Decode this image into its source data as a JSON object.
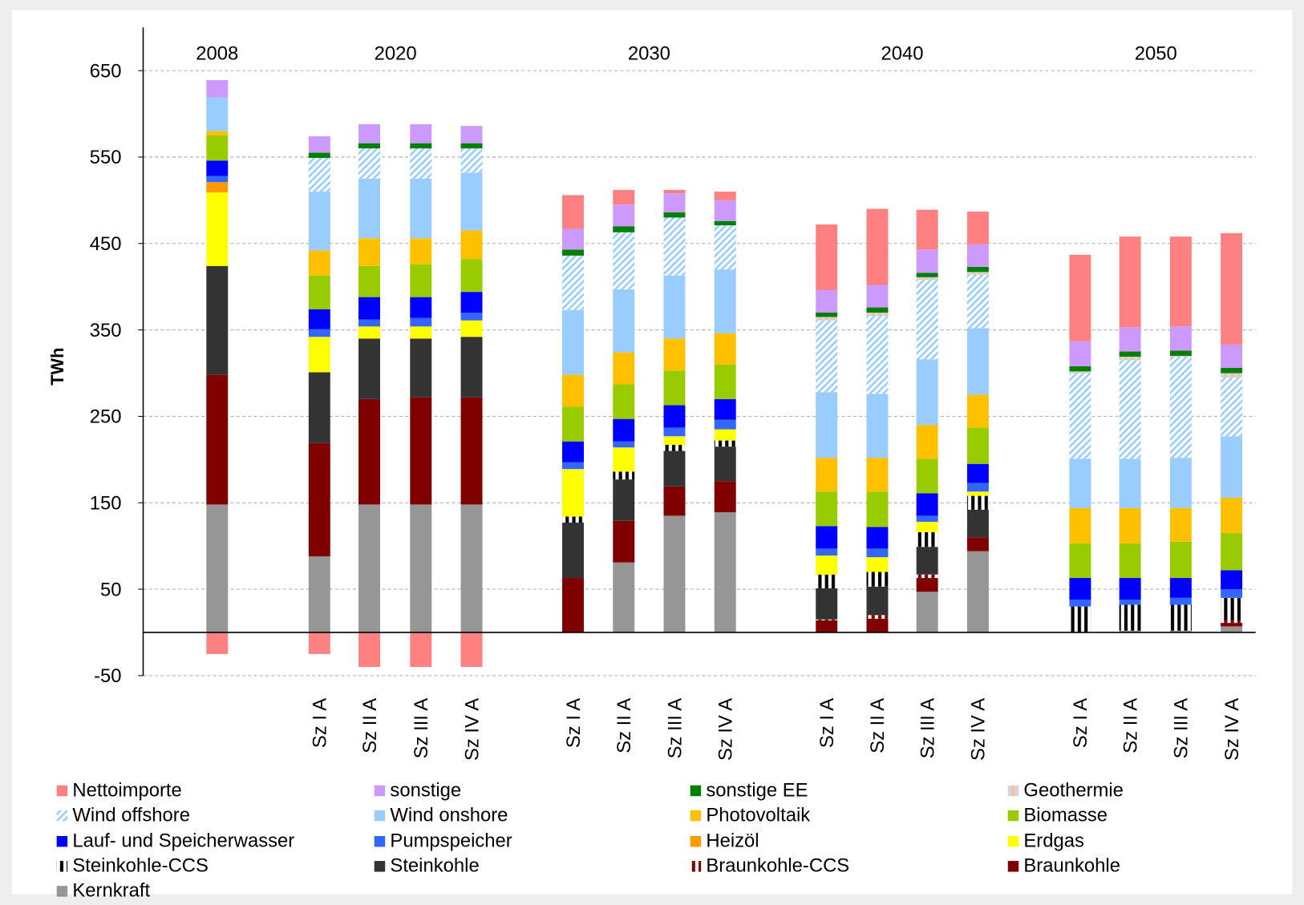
{
  "chart_data": {
    "type": "stacked-bar",
    "y_label": "TWh",
    "ylim": [
      -50,
      700
    ],
    "yticks": [
      -50,
      50,
      150,
      250,
      350,
      450,
      550,
      650
    ],
    "grid": true,
    "categories": [
      null,
      "Sz I A",
      "Sz II A",
      "Sz III A",
      "Sz IV A",
      "Sz I A",
      "Sz II A",
      "Sz III A",
      "Sz IV A",
      "Sz I A",
      "Sz II A",
      "Sz III A",
      "Sz IV A",
      "Sz I A",
      "Sz II A",
      "Sz III A",
      "Sz IV A"
    ],
    "category_years": [
      "2008",
      "2020",
      "2020",
      "2020",
      "2020",
      "2030",
      "2030",
      "2030",
      "2030",
      "2040",
      "2040",
      "2040",
      "2040",
      "2050",
      "2050",
      "2050",
      "2050"
    ],
    "series": [
      {
        "name": "Nettoimporte",
        "color": "#ff8080",
        "values": [
          -25,
          -25,
          -40,
          -40,
          -40,
          39,
          17,
          4,
          10,
          76,
          88,
          46,
          38,
          100,
          105,
          104,
          129
        ]
      },
      {
        "name": "sonstige",
        "color": "#cc99ff",
        "values": [
          20,
          19,
          22,
          22,
          20,
          24,
          25,
          22,
          24,
          26,
          26,
          27,
          26,
          29,
          28,
          28,
          27
        ]
      },
      {
        "name": "sonstige EE",
        "color": "#008000",
        "values": [
          0,
          6,
          6,
          6,
          6,
          7,
          7,
          6,
          5,
          5,
          6,
          5,
          6,
          6,
          6,
          6,
          6
        ]
      },
      {
        "name": "Geothermie",
        "color": "#fac090",
        "color2": "#c6d9f1",
        "hatch": "vertical",
        "values": [
          0,
          0,
          0,
          0,
          0,
          0,
          0,
          0,
          0,
          4,
          4,
          3,
          3,
          2,
          4,
          1,
          5
        ]
      },
      {
        "name": "Wind offshore",
        "color": "#99ccff",
        "color2": "#ffffff",
        "hatch": "diagonal",
        "values": [
          0,
          39,
          35,
          35,
          28,
          63,
          66,
          67,
          51,
          83,
          90,
          92,
          62,
          99,
          114,
          117,
          68
        ]
      },
      {
        "name": "Wind onshore",
        "color": "#99ccff",
        "values": [
          39,
          68,
          69,
          69,
          67,
          75,
          73,
          73,
          74,
          76,
          74,
          76,
          77,
          57,
          57,
          58,
          71
        ]
      },
      {
        "name": "Photovoltaik",
        "color": "#ffc000",
        "values": [
          5,
          29,
          32,
          30,
          33,
          37,
          37,
          37,
          36,
          39,
          39,
          39,
          38,
          41,
          41,
          39,
          41
        ]
      },
      {
        "name": "Biomasse",
        "color": "#99cc00",
        "values": [
          29,
          39,
          36,
          38,
          38,
          40,
          40,
          40,
          40,
          40,
          41,
          40,
          42,
          40,
          40,
          42,
          43
        ]
      },
      {
        "name": "Lauf- und Speicherwasser",
        "color": "#0000ff",
        "values": [
          18,
          23,
          26,
          24,
          24,
          24,
          26,
          26,
          24,
          26,
          25,
          26,
          22,
          25,
          25,
          23,
          22
        ]
      },
      {
        "name": "Pumpspeicher",
        "color": "#3366ff",
        "values": [
          7,
          9,
          8,
          10,
          9,
          8,
          7,
          10,
          11,
          8,
          10,
          7,
          10,
          8,
          6,
          8,
          10
        ]
      },
      {
        "name": "Heizöl",
        "color": "#ff9900",
        "values": [
          12,
          0,
          0,
          0,
          0,
          0,
          0,
          0,
          0,
          0,
          0,
          0,
          0,
          0,
          0,
          0,
          0
        ]
      },
      {
        "name": "Erdgas",
        "color": "#ffff00",
        "values": [
          85,
          41,
          14,
          14,
          19,
          55,
          28,
          10,
          13,
          22,
          17,
          12,
          5,
          0,
          0,
          0,
          0
        ]
      },
      {
        "name": "Steinkohle-CCS",
        "color": "#000000",
        "color2": "#ffffff",
        "hatch": "vertical",
        "values": [
          0,
          0,
          0,
          0,
          0,
          7,
          9,
          7,
          7,
          16,
          17,
          17,
          16,
          30,
          30,
          30,
          26
        ]
      },
      {
        "name": "Steinkohle",
        "color": "#333333",
        "values": [
          126,
          82,
          70,
          68,
          70,
          64,
          48,
          41,
          40,
          36,
          33,
          32,
          32,
          0,
          0,
          0,
          0
        ]
      },
      {
        "name": "Braunkohle-CCS",
        "color": "#800000",
        "color2": "#ffffff",
        "hatch": "vertical",
        "values": [
          0,
          0,
          0,
          0,
          0,
          0,
          0,
          0,
          0,
          1,
          4,
          4,
          0,
          0,
          0,
          0,
          3
        ]
      },
      {
        "name": "Braunkohle",
        "color": "#800000",
        "values": [
          150,
          131,
          122,
          124,
          124,
          63,
          48,
          34,
          36,
          14,
          16,
          16,
          16,
          0,
          0,
          0,
          4
        ]
      },
      {
        "name": "Kernkraft",
        "color": "#969696",
        "values": [
          148,
          88,
          148,
          148,
          148,
          0,
          81,
          135,
          139,
          0,
          0,
          47,
          94,
          0,
          2,
          2,
          7
        ]
      }
    ]
  }
}
